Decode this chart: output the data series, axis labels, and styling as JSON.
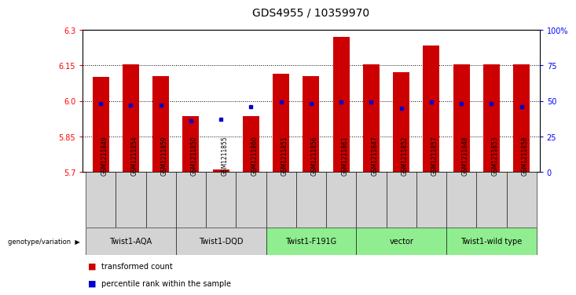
{
  "title": "GDS4955 / 10359970",
  "samples": [
    "GSM1211849",
    "GSM1211854",
    "GSM1211859",
    "GSM1211850",
    "GSM1211855",
    "GSM1211860",
    "GSM1211851",
    "GSM1211856",
    "GSM1211861",
    "GSM1211847",
    "GSM1211852",
    "GSM1211857",
    "GSM1211848",
    "GSM1211853",
    "GSM1211858"
  ],
  "red_values": [
    6.1,
    6.155,
    6.105,
    5.935,
    5.71,
    5.935,
    6.115,
    6.105,
    6.27,
    6.155,
    6.12,
    6.235,
    6.155,
    6.155,
    6.155
  ],
  "blue_values": [
    48,
    47,
    47,
    36,
    37,
    46,
    49,
    48,
    49,
    49,
    45,
    49,
    48,
    48,
    46
  ],
  "groups": [
    {
      "label": "Twist1-AQA",
      "samples": [
        "GSM1211849",
        "GSM1211854",
        "GSM1211859"
      ],
      "color": "#d3d3d3"
    },
    {
      "label": "Twist1-DQD",
      "samples": [
        "GSM1211850",
        "GSM1211855",
        "GSM1211860"
      ],
      "color": "#d3d3d3"
    },
    {
      "label": "Twist1-F191G",
      "samples": [
        "GSM1211851",
        "GSM1211856",
        "GSM1211861"
      ],
      "color": "#90ee90"
    },
    {
      "label": "vector",
      "samples": [
        "GSM1211847",
        "GSM1211852",
        "GSM1211857"
      ],
      "color": "#90ee90"
    },
    {
      "label": "Twist1-wild type",
      "samples": [
        "GSM1211848",
        "GSM1211853",
        "GSM1211858"
      ],
      "color": "#90ee90"
    }
  ],
  "y_min": 5.7,
  "y_max": 6.3,
  "y_ticks": [
    5.7,
    5.85,
    6.0,
    6.15,
    6.3
  ],
  "right_y_ticks": [
    0,
    25,
    50,
    75,
    100
  ],
  "right_y_labels": [
    "0",
    "25",
    "50",
    "75",
    "100%"
  ],
  "bar_color": "#cc0000",
  "dot_color": "#0000cc",
  "title_fontsize": 10,
  "tick_fontsize": 7,
  "sample_fontsize": 5.5,
  "group_fontsize": 7,
  "legend_fontsize": 7
}
